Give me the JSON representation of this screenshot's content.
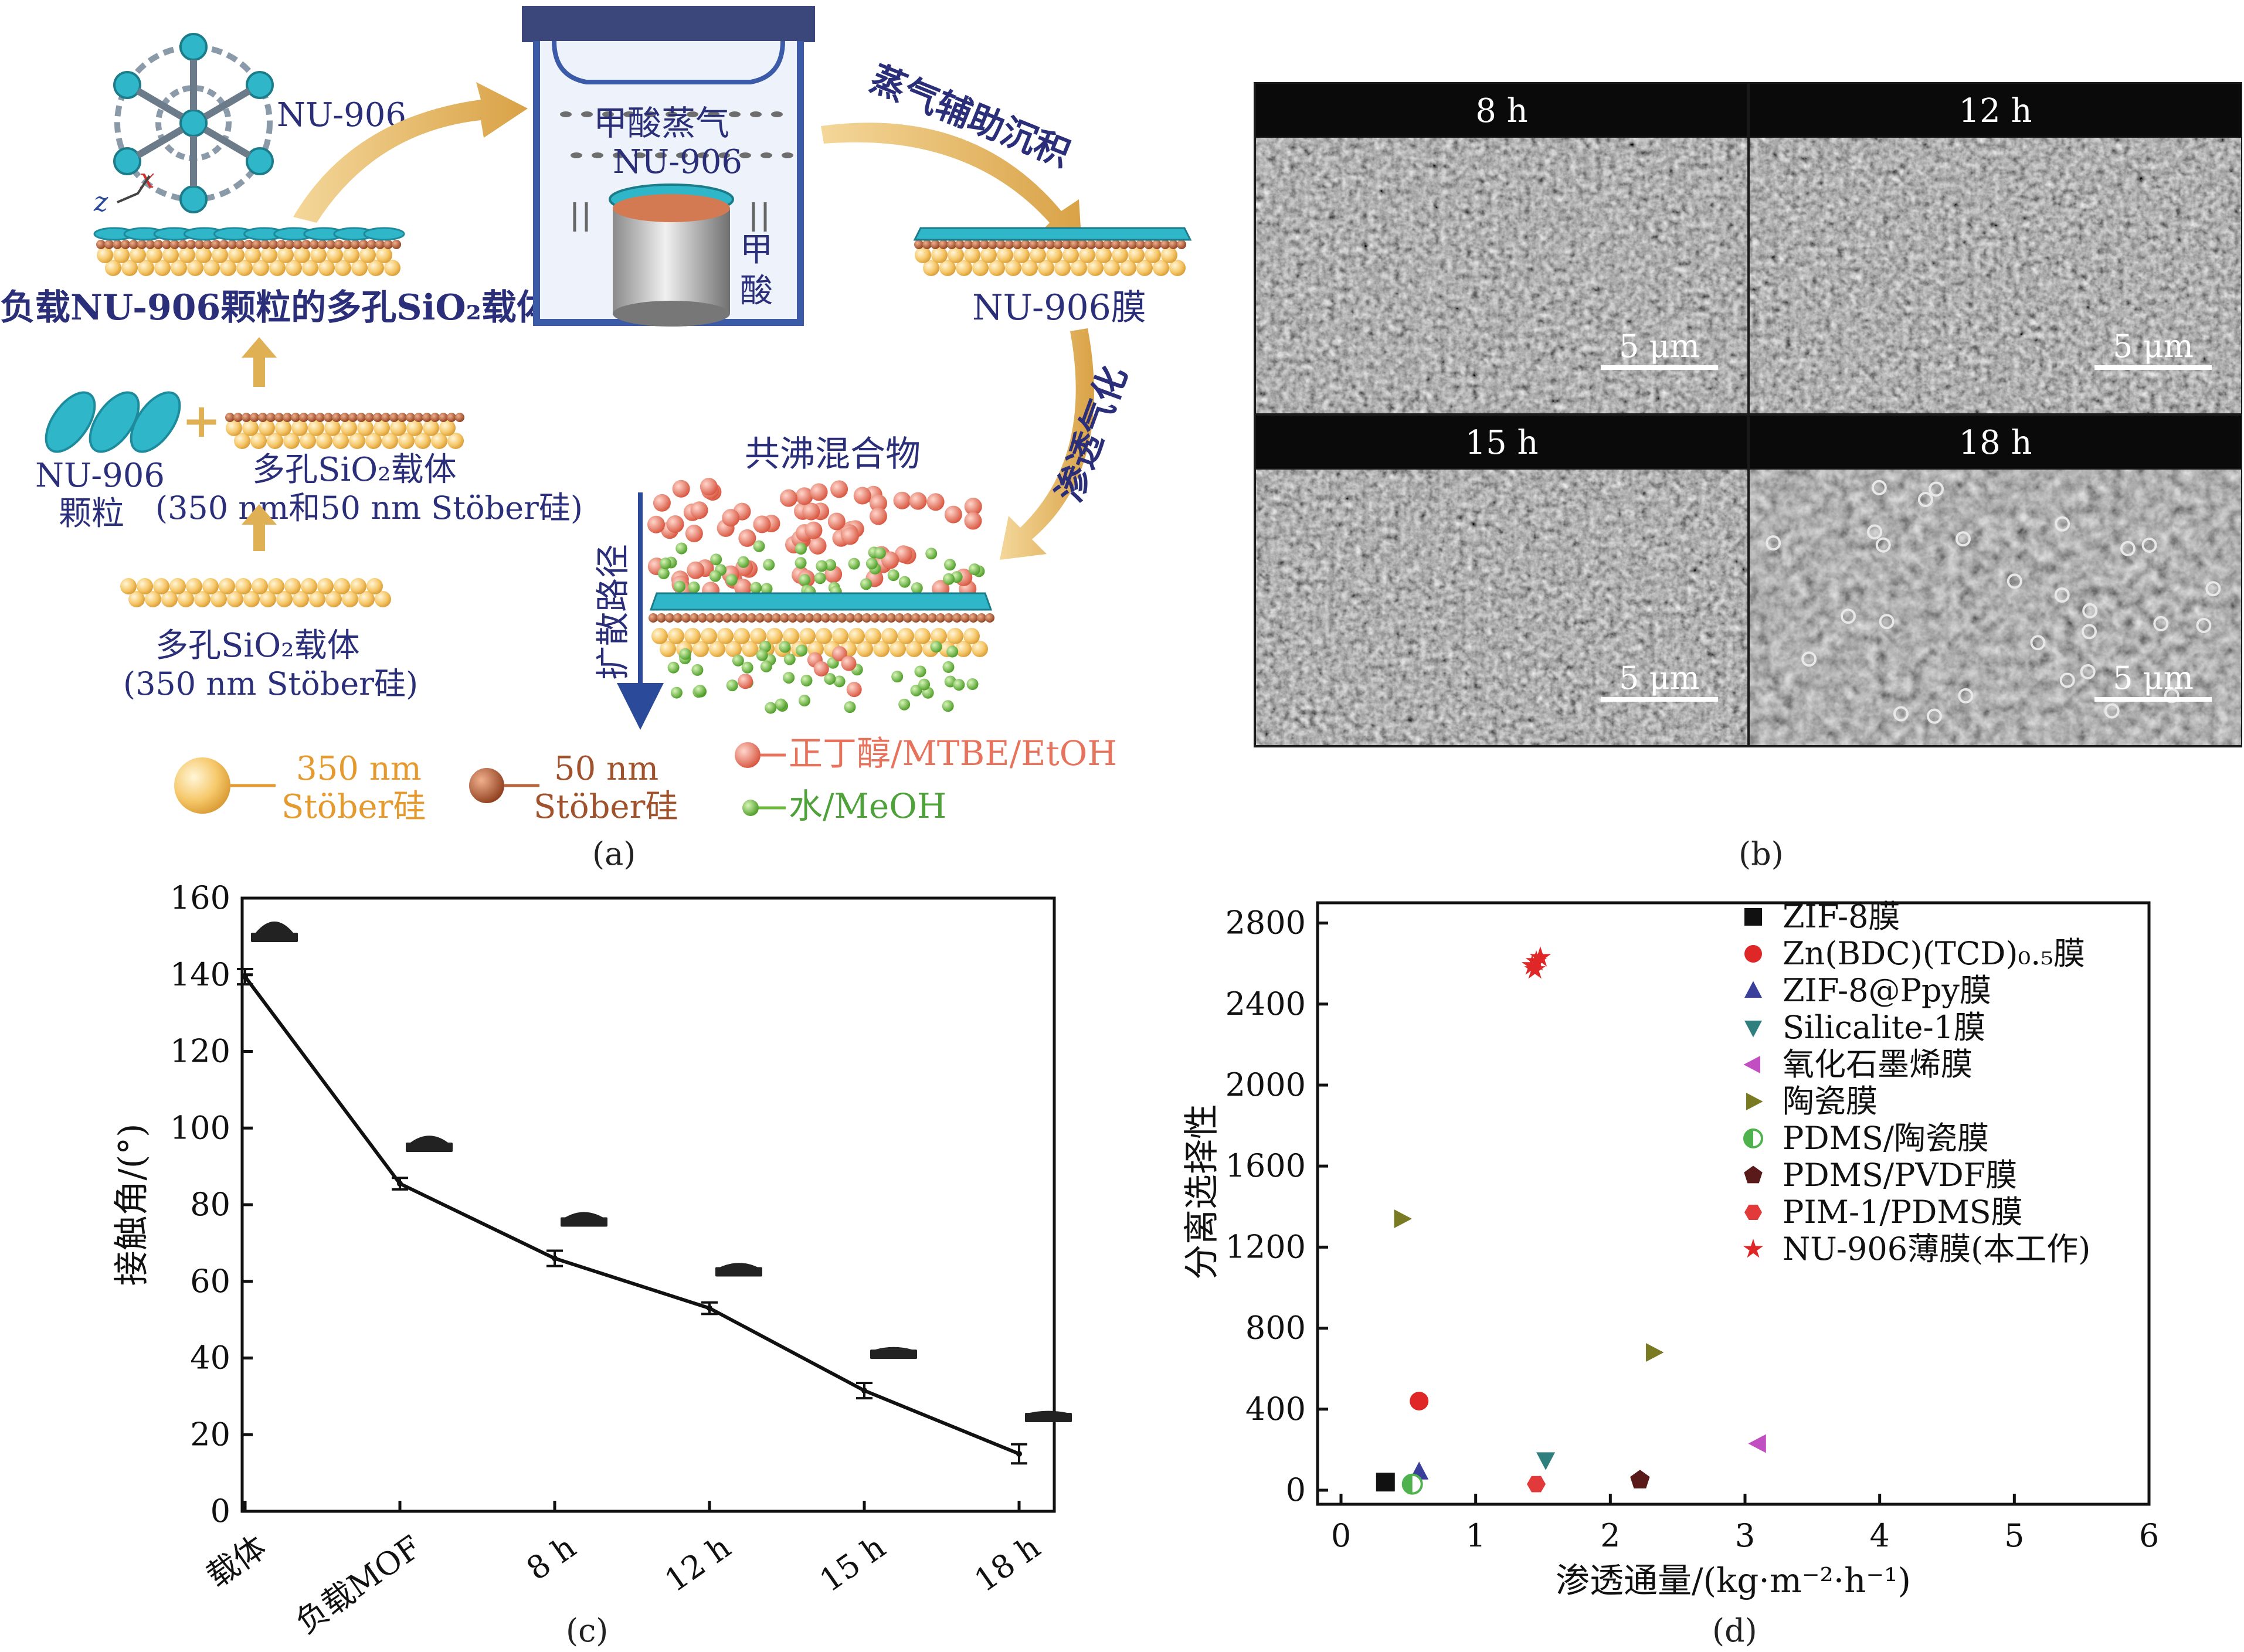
{
  "panel_a": {
    "nu906_label": "NU-906",
    "axis_z": "z",
    "axis_x": "x",
    "loaded_support_label": "负载NU-906颗粒的多孔SiO₂载体",
    "vessel_vapor_label": "甲酸蒸气",
    "vessel_nu906_label": "NU-906",
    "vessel_acid_label": "甲酸",
    "step_vapor_deposition": "蒸气辅助沉积",
    "membrane_label": "NU-906膜",
    "step_pervaporation": "渗透气化",
    "particles_label_1": "NU-906",
    "particles_label_2": "颗粒",
    "plus_sign": "+",
    "porous_support_label_1": "多孔SiO₂载体",
    "porous_support_label_2": "(350 nm和50 nm Stöber硅)",
    "base_support_label_1": "多孔SiO₂载体",
    "base_support_label_2": "(350 nm Stöber硅)",
    "azeotrope_label": "共沸混合物",
    "diffusion_path_label": "扩散路径",
    "legend": {
      "large_silica_1": "350 nm",
      "large_silica_2": "Stöber硅",
      "small_silica_1": "50 nm",
      "small_silica_2": "Stöber硅",
      "organic": "正丁醇/MTBE/EtOH",
      "water": "水/MeOH"
    },
    "colors": {
      "arrow": "#e0b055",
      "nu906": "#2fb6c9",
      "silica_large": "#f6c86a",
      "silica_small": "#b8643c",
      "organic_molecule": "#e8735d",
      "water_molecule": "#6cbb3c",
      "label_navy": "#2b2f7a",
      "legend_orange": "#e59a2f"
    },
    "caption": "(a)"
  },
  "panel_b": {
    "tiles": [
      {
        "time": "8 h",
        "scale": "5 μm"
      },
      {
        "time": "12 h",
        "scale": "5 μm"
      },
      {
        "time": "15 h",
        "scale": "5 μm"
      },
      {
        "time": "18 h",
        "scale": "5 μm"
      }
    ],
    "caption": "(b)"
  },
  "chart_data": [
    {
      "type": "line",
      "title": "",
      "xlabel": "",
      "ylabel": "接触角/(°)",
      "categories": [
        "载体",
        "负载MOF",
        "8 h",
        "12 h",
        "15 h",
        "18 h"
      ],
      "values": [
        139.5,
        85.5,
        66,
        53,
        31.5,
        15
      ],
      "errors": [
        2,
        1.5,
        2,
        1.5,
        2,
        2.5
      ],
      "ylim": [
        0,
        160
      ],
      "yticks": [
        0,
        20,
        40,
        60,
        80,
        100,
        120,
        140,
        160
      ],
      "grid": false,
      "caption": "(c)"
    },
    {
      "type": "scatter",
      "title": "",
      "xlabel": "渗透通量/(kg·m⁻²·h⁻¹)",
      "ylabel": "分离选择性",
      "xlim": [
        0,
        6
      ],
      "ylim": [
        0,
        2900
      ],
      "xticks": [
        0,
        1,
        2,
        3,
        4,
        5,
        6
      ],
      "yticks": [
        0,
        400,
        800,
        1200,
        1600,
        2000,
        2400,
        2800
      ],
      "grid": false,
      "legend_position": "top-right",
      "series": [
        {
          "name": "ZIF-8膜",
          "marker": "square",
          "color": "#111111",
          "points": [
            [
              0.33,
              40
            ]
          ]
        },
        {
          "name": "Zn(BDC)(TCD)₀.₅膜",
          "marker": "circle",
          "color": "#e02727",
          "points": [
            [
              0.58,
              440
            ]
          ]
        },
        {
          "name": "ZIF-8@Ppy膜",
          "marker": "triangle-up",
          "color": "#3a3f9c",
          "points": [
            [
              0.58,
              90
            ]
          ]
        },
        {
          "name": "Silicalite-1膜",
          "marker": "triangle-down",
          "color": "#2f7f7f",
          "points": [
            [
              1.52,
              150
            ]
          ]
        },
        {
          "name": "氧化石墨烯膜",
          "marker": "triangle-left",
          "color": "#c24fc2",
          "points": [
            [
              3.1,
              230
            ]
          ]
        },
        {
          "name": "陶瓷膜",
          "marker": "triangle-right",
          "color": "#7a7a22",
          "points": [
            [
              0.45,
              1340
            ],
            [
              2.32,
              680
            ]
          ]
        },
        {
          "name": "PDMS/陶瓷膜",
          "marker": "half-circle",
          "color": "#4fb24f",
          "points": [
            [
              0.53,
              30
            ]
          ]
        },
        {
          "name": "PDMS/PVDF膜",
          "marker": "pentagon",
          "color": "#5a1a1a",
          "points": [
            [
              2.22,
              50
            ]
          ]
        },
        {
          "name": "PIM-1/PDMS膜",
          "marker": "hexagon",
          "color": "#e23a3a",
          "points": [
            [
              1.45,
              30
            ]
          ]
        },
        {
          "name": "NU-906薄膜(本工作)",
          "marker": "star",
          "color": "#e02727",
          "points": [
            [
              1.42,
              2590
            ],
            [
              1.45,
              2610
            ],
            [
              1.48,
              2630
            ],
            [
              1.44,
              2570
            ]
          ]
        }
      ],
      "caption": "(d)"
    }
  ]
}
